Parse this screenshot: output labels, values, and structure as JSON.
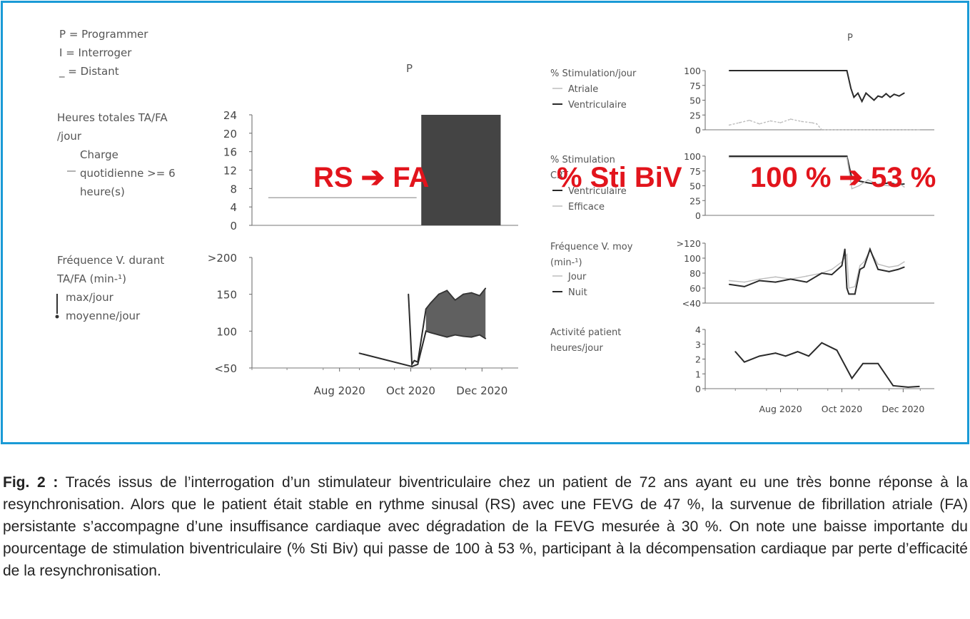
{
  "legend_marks": {
    "programmer": "P = Programmer",
    "interroger": "I = Interroger",
    "distant": "_ = Distant"
  },
  "p_markers": {
    "left": "P",
    "right": "P"
  },
  "annotations": {
    "rhythm": "RS ➔ FA",
    "stim": "% Sti BiV",
    "drop": "100 % ➔ 53 %"
  },
  "colors": {
    "frame": "#1a9ad6",
    "annotation": "#e2141c",
    "trace": "#2a2a2a",
    "light_trace": "#bdbdbd",
    "fill": "#444444"
  },
  "chart_data": [
    {
      "type": "area",
      "id": "af-hours",
      "label_lines": [
        "Heures totales TA/FA",
        "/jour"
      ],
      "legend": [
        {
          "symbol": "line",
          "lines": [
            "Charge",
            "quotidienne >= 6",
            "heure(s)"
          ]
        }
      ],
      "yticks": [
        "24",
        "20",
        "16",
        "12",
        "8",
        "4",
        "0"
      ],
      "ylim": [
        0,
        24
      ],
      "series": [
        {
          "name": "Charge quotidienne >= 6 heure(s)",
          "x": [
            "2020-06-15",
            "2020-10-20"
          ],
          "y": [
            6,
            6
          ]
        },
        {
          "x": [
            "2020-10-24",
            "2020-12-31"
          ],
          "y": [
            24,
            24
          ]
        }
      ]
    },
    {
      "type": "line",
      "id": "v-rate-af",
      "label_lines": [
        "Fréquence V. durant",
        "TA/FA (min-¹)"
      ],
      "legend": [
        {
          "symbol": "bar",
          "text": "max/jour"
        },
        {
          "symbol": "dot",
          "text": "moyenne/jour"
        }
      ],
      "yticks": [
        ">200",
        "150",
        "100",
        "<50"
      ],
      "ylim": [
        50,
        200
      ],
      "xticks": [
        "Aug 2020",
        "Oct 2020",
        "Dec 2020"
      ],
      "series": [
        {
          "name": "max/jour",
          "x": [
            "2020-10-13",
            "2020-10-16",
            "2020-10-18",
            "2020-10-21",
            "2020-10-28",
            "2020-11-01",
            "2020-11-08",
            "2020-11-15",
            "2020-11-22",
            "2020-11-29",
            "2020-12-06",
            "2020-12-13",
            "2020-12-18"
          ],
          "y": [
            150,
            55,
            60,
            58,
            130,
            138,
            150,
            155,
            142,
            150,
            152,
            148,
            158
          ]
        },
        {
          "name": "moyenne/jour",
          "x": [
            "2020-09-01",
            "2020-10-16",
            "2020-10-21",
            "2020-10-28",
            "2020-11-01",
            "2020-11-08",
            "2020-11-15",
            "2020-11-22",
            "2020-11-29",
            "2020-12-06",
            "2020-12-13",
            "2020-12-18"
          ],
          "y": [
            70,
            52,
            55,
            100,
            98,
            95,
            92,
            95,
            93,
            92,
            95,
            90
          ]
        }
      ]
    },
    {
      "type": "line",
      "id": "stim-pct",
      "label_lines": [
        "% Stimulation/jour"
      ],
      "legend": [
        {
          "symbol": "light",
          "text": "Atriale"
        },
        {
          "symbol": "dark",
          "text": "Ventriculaire"
        }
      ],
      "yticks": [
        "100",
        "75",
        "50",
        "25",
        "0"
      ],
      "ylim": [
        0,
        100
      ],
      "series": [
        {
          "name": "Atriale",
          "x": [
            "2020-06-25",
            "2020-07-05",
            "2020-07-15",
            "2020-07-25",
            "2020-08-05",
            "2020-08-15",
            "2020-08-25",
            "2020-09-05",
            "2020-09-15",
            "2020-09-20",
            "2020-09-25",
            "2020-12-31"
          ],
          "y": [
            8,
            12,
            16,
            10,
            15,
            12,
            18,
            14,
            12,
            10,
            0,
            0
          ]
        },
        {
          "name": "Ventriculaire",
          "x": [
            "2020-06-25",
            "2020-10-20",
            "2020-10-24",
            "2020-10-27",
            "2020-10-31",
            "2020-11-04",
            "2020-11-08",
            "2020-11-12",
            "2020-11-16",
            "2020-11-20",
            "2020-11-24",
            "2020-11-28",
            "2020-12-02",
            "2020-12-06",
            "2020-12-11",
            "2020-12-16"
          ],
          "y": [
            100,
            100,
            70,
            55,
            62,
            48,
            62,
            56,
            50,
            57,
            55,
            61,
            55,
            60,
            57,
            62
          ]
        }
      ]
    },
    {
      "type": "line",
      "id": "crt-pct",
      "label_lines": [
        "% Stimulation",
        "CRT"
      ],
      "legend": [
        {
          "symbol": "dark",
          "text": "Ventriculaire"
        },
        {
          "symbol": "light",
          "text": "Efficace"
        }
      ],
      "yticks": [
        "100",
        "75",
        "50",
        "25",
        "0"
      ],
      "ylim": [
        0,
        100
      ],
      "series": [
        {
          "name": "Ventriculaire",
          "x": [
            "2020-06-25",
            "2020-10-20",
            "2020-10-25",
            "2020-11-01",
            "2020-11-10",
            "2020-11-20",
            "2020-12-01",
            "2020-12-10",
            "2020-12-16"
          ],
          "y": [
            100,
            100,
            62,
            58,
            55,
            52,
            55,
            52,
            53
          ]
        },
        {
          "name": "Efficace",
          "x": [
            "2020-06-25",
            "2020-10-20",
            "2020-10-25",
            "2020-11-01",
            "2020-11-10",
            "2020-11-20",
            "2020-12-01",
            "2020-12-10",
            "2020-12-16"
          ],
          "y": [
            98,
            98,
            45,
            50,
            60,
            52,
            50,
            55,
            48
          ]
        }
      ]
    },
    {
      "type": "line",
      "id": "v-rate-mean",
      "label_lines": [
        "Fréquence V. moy",
        "(min-¹)"
      ],
      "legend": [
        {
          "symbol": "light",
          "text": "Jour"
        },
        {
          "symbol": "dark",
          "text": "Nuit"
        }
      ],
      "yticks": [
        ">120",
        "100",
        "80",
        "60",
        "<40"
      ],
      "ylim": [
        40,
        120
      ],
      "series": [
        {
          "name": "Jour",
          "x": [
            "2020-06-25",
            "2020-07-10",
            "2020-07-25",
            "2020-08-10",
            "2020-08-25",
            "2020-09-10",
            "2020-09-25",
            "2020-10-05",
            "2020-10-15",
            "2020-10-20",
            "2020-10-22",
            "2020-10-28",
            "2020-11-02",
            "2020-11-06",
            "2020-11-12",
            "2020-11-20",
            "2020-12-01",
            "2020-12-10",
            "2020-12-16"
          ],
          "y": [
            70,
            68,
            72,
            75,
            72,
            76,
            80,
            85,
            95,
            105,
            60,
            62,
            90,
            95,
            110,
            92,
            88,
            90,
            95
          ]
        },
        {
          "name": "Nuit",
          "x": [
            "2020-06-25",
            "2020-07-10",
            "2020-07-25",
            "2020-08-10",
            "2020-08-25",
            "2020-09-10",
            "2020-09-25",
            "2020-10-05",
            "2020-10-15",
            "2020-10-18",
            "2020-10-20",
            "2020-10-22",
            "2020-10-28",
            "2020-11-02",
            "2020-11-06",
            "2020-11-12",
            "2020-11-20",
            "2020-12-01",
            "2020-12-10",
            "2020-12-16"
          ],
          "y": [
            65,
            62,
            70,
            68,
            72,
            68,
            80,
            78,
            90,
            112,
            60,
            52,
            52,
            85,
            88,
            112,
            85,
            82,
            85,
            88
          ]
        }
      ]
    },
    {
      "type": "line",
      "id": "activity",
      "label_lines": [
        "Activité patient",
        "heures/jour"
      ],
      "yticks": [
        "4",
        "3",
        "2",
        "1",
        "0"
      ],
      "ylim": [
        0,
        4
      ],
      "xticks": [
        "Aug 2020",
        "Oct 2020",
        "Dec 2020"
      ],
      "series": [
        {
          "name": "Activité patient",
          "x": [
            "2020-07-01",
            "2020-07-10",
            "2020-07-25",
            "2020-08-10",
            "2020-08-20",
            "2020-09-01",
            "2020-09-12",
            "2020-09-25",
            "2020-10-10",
            "2020-10-25",
            "2020-11-05",
            "2020-11-20",
            "2020-12-05",
            "2020-12-20",
            "2020-12-31"
          ],
          "y": [
            2.5,
            1.8,
            2.2,
            2.4,
            2.2,
            2.5,
            2.2,
            3.1,
            2.6,
            0.7,
            1.7,
            1.7,
            0.2,
            0.1,
            0.15
          ]
        }
      ]
    }
  ],
  "caption": {
    "label": "Fig. 2 :",
    "text": "Tracés issus de l’interrogation d’un stimulateur biventriculaire chez un patient de 72 ans ayant eu une très bonne réponse à la resynchronisation. Alors que le patient était stable en rythme sinusal (RS) avec une FEVG de 47 %, la survenue de fibrillation atriale (FA) persistante s’accompagne d’une insuffisance cardiaque avec dégradation de la FEVG mesurée à 30 %. On note une baisse importante du pourcentage de stimulation biventriculaire (% Sti Biv) qui passe de 100 à 53 %, participant à la décompensation cardiaque par perte d’efficacité de la resynchronisation."
  }
}
